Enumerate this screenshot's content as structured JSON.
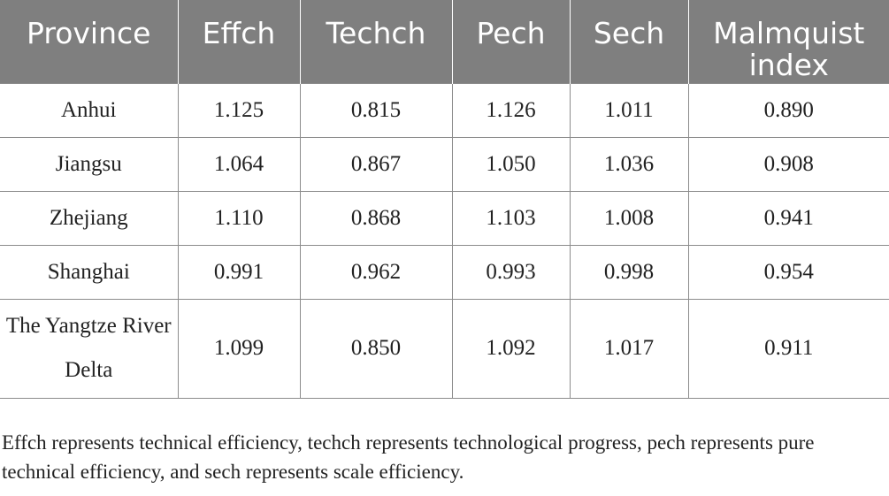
{
  "table": {
    "headers": [
      "Province",
      "Effch",
      "Techch",
      "Pech",
      "Sech",
      "Malmquist index"
    ],
    "rows": [
      [
        "Anhui",
        "1.125",
        "0.815",
        "1.126",
        "1.011",
        "0.890"
      ],
      [
        "Jiangsu",
        "1.064",
        "0.867",
        "1.050",
        "1.036",
        "0.908"
      ],
      [
        "Zhejiang",
        "1.110",
        "0.868",
        "1.103",
        "1.008",
        "0.941"
      ],
      [
        "Shanghai",
        "0.991",
        "0.962",
        "0.993",
        "0.998",
        "0.954"
      ],
      [
        "The Yangtze River Delta",
        "1.099",
        "0.850",
        "1.092",
        "1.017",
        "0.911"
      ]
    ]
  },
  "footnote": "Effch represents technical efficiency, techch represents technological progress, pech represents pure technical efficiency, and sech represents scale efficiency.",
  "colors": {
    "header_background": "#7f7f7f",
    "header_text": "#ffffff",
    "grid_lines": "#8c8c8c",
    "body_text": "#222222"
  }
}
